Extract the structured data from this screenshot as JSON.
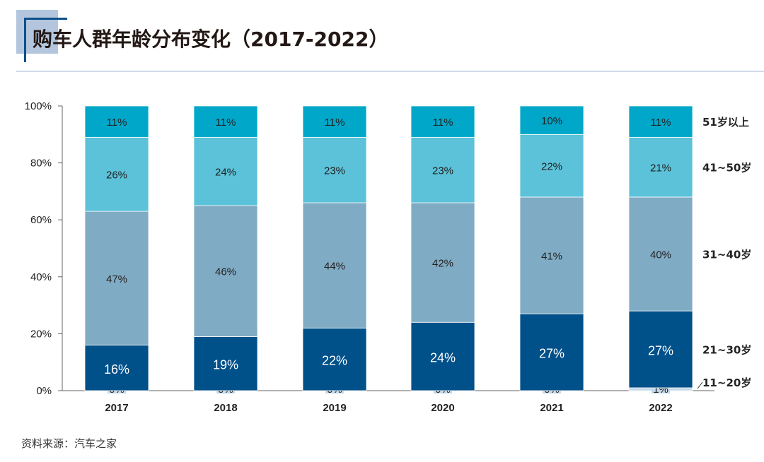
{
  "title": "购车人群年龄分布变化（2017-2022）",
  "source": "资料来源：汽车之家",
  "chart_data": {
    "type": "bar",
    "stacked": true,
    "categories": [
      "2017",
      "2018",
      "2019",
      "2020",
      "2021",
      "2022"
    ],
    "ylim": [
      0,
      100
    ],
    "yticks": [
      "0%",
      "20%",
      "40%",
      "60%",
      "80%",
      "100%"
    ],
    "series": [
      {
        "name": "11~20岁",
        "color": "#c3d8e8",
        "values": [
          0,
          0,
          0,
          0,
          0,
          1
        ]
      },
      {
        "name": "21~30岁",
        "color": "#00508a",
        "values": [
          16,
          19,
          22,
          24,
          27,
          27
        ]
      },
      {
        "name": "31~40岁",
        "color": "#80abc4",
        "values": [
          47,
          46,
          44,
          42,
          41,
          40
        ]
      },
      {
        "name": "41~50岁",
        "color": "#5bc2d9",
        "values": [
          26,
          24,
          23,
          23,
          22,
          21
        ]
      },
      {
        "name": "51岁以上",
        "color": "#00a7c9",
        "values": [
          11,
          11,
          11,
          11,
          10,
          11
        ]
      }
    ],
    "legend": "right, aligned to last bar"
  }
}
